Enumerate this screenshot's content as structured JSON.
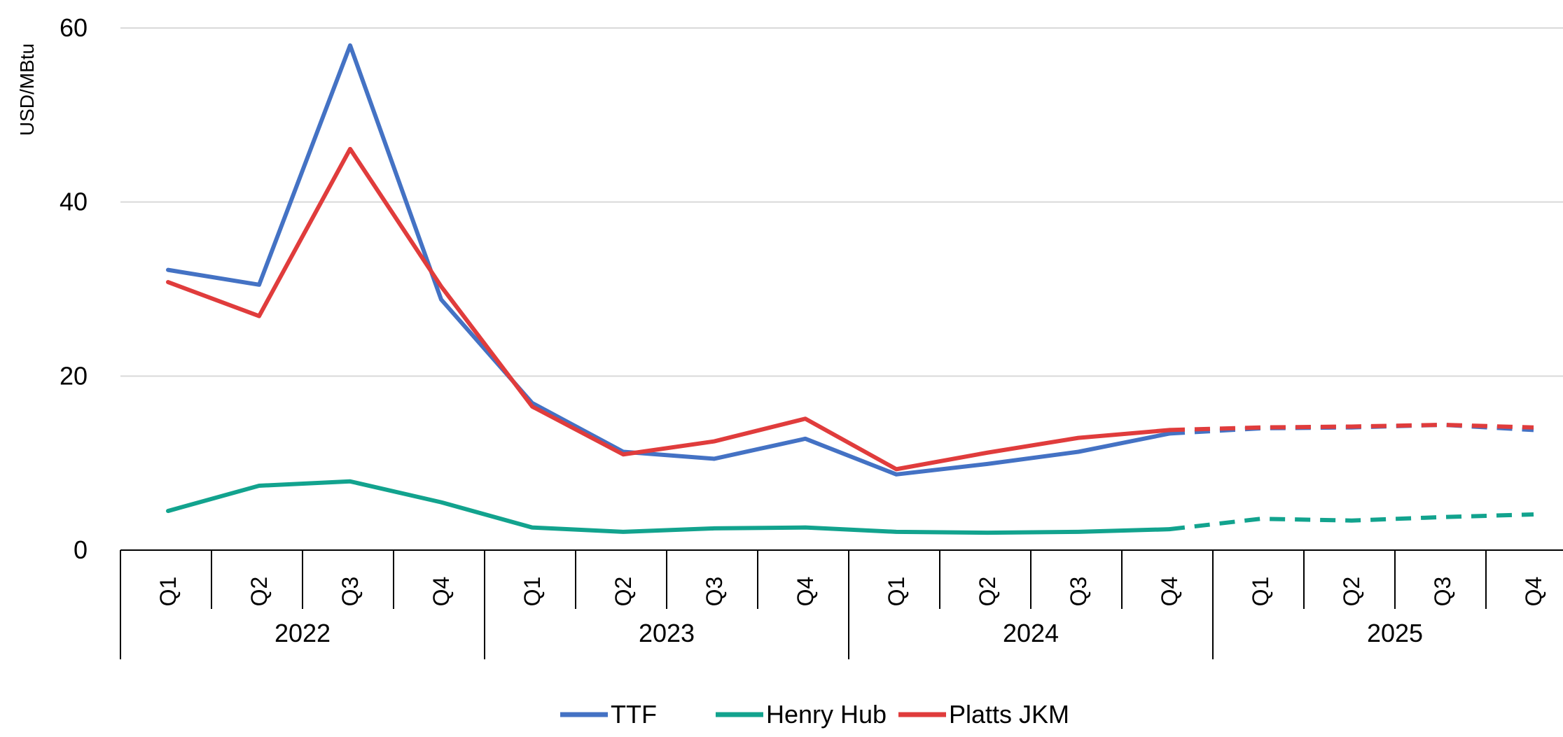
{
  "chart_data": {
    "type": "line",
    "ylabel": "USD/MBtu",
    "ylim": [
      0,
      60
    ],
    "yticks": [
      "0",
      "20",
      "40",
      "60"
    ],
    "grid": true,
    "legend_position": "bottom-center",
    "quarters": [
      "Q1",
      "Q2",
      "Q3",
      "Q4",
      "Q1",
      "Q2",
      "Q3",
      "Q4",
      "Q1",
      "Q2",
      "Q3",
      "Q4",
      "Q1",
      "Q2",
      "Q3",
      "Q4"
    ],
    "years": [
      "2022",
      "2023",
      "2024",
      "2025"
    ],
    "forecast_start_index": 11,
    "series": [
      {
        "name": "TTF",
        "color": "#4472c4",
        "values": [
          32.2,
          30.5,
          58.0,
          28.8,
          16.9,
          11.3,
          10.5,
          12.8,
          8.7,
          9.9,
          11.3,
          13.4,
          14.0,
          14.1,
          14.4,
          13.8
        ]
      },
      {
        "name": "Henry Hub",
        "color": "#12a38e",
        "values": [
          4.5,
          7.4,
          7.9,
          5.5,
          2.6,
          2.1,
          2.5,
          2.6,
          2.1,
          2.0,
          2.1,
          2.4,
          3.6,
          3.4,
          3.8,
          4.1
        ]
      },
      {
        "name": "Platts JKM",
        "color": "#e03c3c",
        "values": [
          30.8,
          26.9,
          46.1,
          30.3,
          16.5,
          11.0,
          12.5,
          15.1,
          9.3,
          11.2,
          12.9,
          13.8,
          14.1,
          14.2,
          14.4,
          14.1
        ]
      }
    ]
  }
}
